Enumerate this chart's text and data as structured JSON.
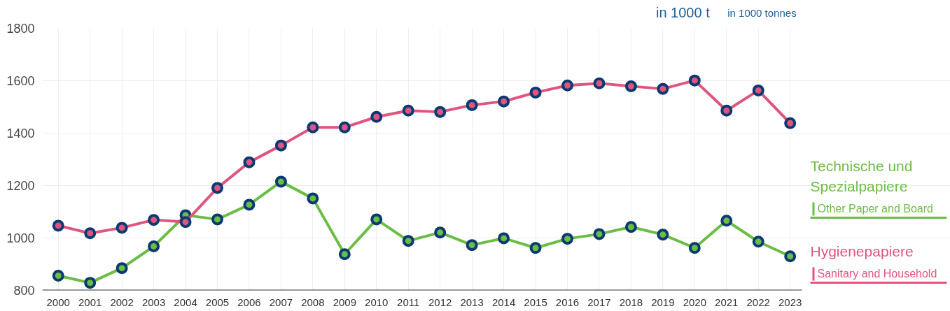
{
  "chart_data": {
    "type": "line",
    "ylabel": "in 1000 t",
    "annotations": [
      "in 1000 tonnes"
    ],
    "categories": [
      "2000",
      "2001",
      "2002",
      "2003",
      "2004",
      "2005",
      "2006",
      "2007",
      "2008",
      "2009",
      "2010",
      "2011",
      "2012",
      "2013",
      "2014",
      "2015",
      "2016",
      "2017",
      "2018",
      "2019",
      "2020",
      "2021",
      "2022",
      "2023"
    ],
    "series": [
      {
        "name": "Technische und Spezialpapiere\nOther Paper and Board",
        "color": "#6bbd45",
        "values": [
          856,
          829,
          885,
          968,
          1087,
          1071,
          1127,
          1215,
          1151,
          938,
          1071,
          989,
          1021,
          973,
          999,
          962,
          997,
          1015,
          1042,
          1013,
          962,
          1066,
          986,
          930
        ]
      },
      {
        "name": "Hygienepapiere\nSanitary and Household",
        "color": "#e0557f",
        "values": [
          1047,
          1018,
          1039,
          1069,
          1061,
          1191,
          1289,
          1353,
          1422,
          1422,
          1462,
          1486,
          1481,
          1507,
          1521,
          1555,
          1582,
          1590,
          1579,
          1569,
          1601,
          1486,
          1563,
          1438
        ]
      }
    ],
    "ylim": [
      800,
      1800
    ],
    "yticks": [
      800,
      1000,
      1200,
      1400,
      1600,
      1800
    ],
    "grid": true,
    "legend": "right",
    "marker": "circle",
    "line_style": "solid"
  }
}
